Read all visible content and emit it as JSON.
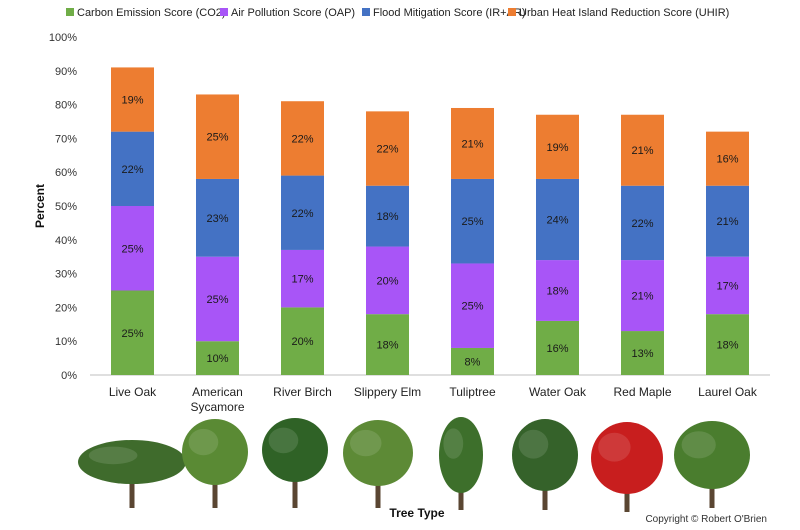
{
  "chart_data": {
    "type": "bar",
    "stacked": true,
    "title": "",
    "xlabel": "Tree Type",
    "ylabel": "Percent",
    "ylim": [
      0,
      100
    ],
    "yticks": [
      "0%",
      "10%",
      "20%",
      "30%",
      "40%",
      "50%",
      "60%",
      "70%",
      "80%",
      "90%",
      "100%"
    ],
    "grid": false,
    "legend_position": "top",
    "categories": [
      [
        "Live Oak"
      ],
      [
        "American",
        "Sycamore"
      ],
      [
        "River Birch"
      ],
      [
        "Slippery Elm"
      ],
      [
        "Tuliptree"
      ],
      [
        "Water Oak"
      ],
      [
        "Red Maple"
      ],
      [
        "Laurel Oak"
      ]
    ],
    "series": [
      {
        "name": "Carbon Emission Score (CO2)",
        "color": "#70ad47",
        "values": [
          25,
          10,
          20,
          18,
          8,
          16,
          13,
          18
        ],
        "labels": [
          "25%",
          "10%",
          "20%",
          "18%",
          "8%",
          "16%",
          "13%",
          "18%"
        ]
      },
      {
        "name": "Air Pollution Score (OAP)",
        "color": "#a855f7",
        "values": [
          25,
          25,
          17,
          20,
          25,
          18,
          21,
          17
        ],
        "labels": [
          "25%",
          "25%",
          "17%",
          "20%",
          "25%",
          "18%",
          "21%",
          "17%"
        ]
      },
      {
        "name": "Flood Mitigation Score (IR+AR)",
        "color": "#4472c4",
        "values": [
          22,
          23,
          22,
          18,
          25,
          24,
          22,
          21
        ],
        "labels": [
          "22%",
          "23%",
          "22%",
          "18%",
          "25%",
          "24%",
          "22%",
          "21%"
        ]
      },
      {
        "name": "Urban Heat Island Reduction Score (UHIR)",
        "color": "#ed7d31",
        "values": [
          19,
          25,
          22,
          22,
          21,
          19,
          21,
          16
        ],
        "labels": [
          "19%",
          "25%",
          "22%",
          "22%",
          "21%",
          "19%",
          "21%",
          "16%"
        ]
      }
    ]
  },
  "tree_images": [
    {
      "name": "Live Oak",
      "icon": "live-oak-tree-icon",
      "foliage": "#3f6b2c"
    },
    {
      "name": "American Sycamore",
      "icon": "sycamore-tree-icon",
      "foliage": "#5a8a34"
    },
    {
      "name": "River Birch",
      "icon": "river-birch-tree-icon",
      "foliage": "#2f6226"
    },
    {
      "name": "Slippery Elm",
      "icon": "slippery-elm-tree-icon",
      "foliage": "#5d8a36"
    },
    {
      "name": "Tuliptree",
      "icon": "tuliptree-tree-icon",
      "foliage": "#3d6f2b"
    },
    {
      "name": "Water Oak",
      "icon": "water-oak-tree-icon",
      "foliage": "#35622a"
    },
    {
      "name": "Red Maple",
      "icon": "red-maple-tree-icon",
      "foliage": "#c81e1e"
    },
    {
      "name": "Laurel Oak",
      "icon": "laurel-oak-tree-icon",
      "foliage": "#4a7d2e"
    }
  ],
  "copyright": "Copyright © Robert O'Brien"
}
